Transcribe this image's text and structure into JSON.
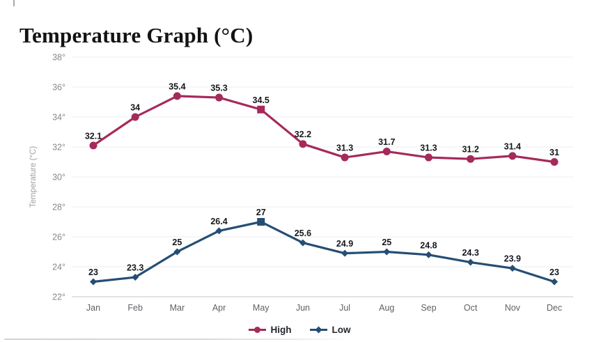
{
  "page": {
    "title": "Temperature Graph (°C)"
  },
  "chart_data": {
    "type": "line",
    "title": "Temperature Graph (°C)",
    "xlabel": "",
    "ylabel": "Temperature (°C)",
    "categories": [
      "Jan",
      "Feb",
      "Mar",
      "Apr",
      "May",
      "Jun",
      "Jul",
      "Aug",
      "Sep",
      "Oct",
      "Nov",
      "Dec"
    ],
    "series": [
      {
        "name": "High",
        "color": "#a52a5b",
        "marker": "circle",
        "values": [
          32.1,
          34,
          35.4,
          35.3,
          34.5,
          32.2,
          31.3,
          31.7,
          31.3,
          31.2,
          31.4,
          31
        ],
        "highlight_index": 4
      },
      {
        "name": "Low",
        "color": "#254e74",
        "marker": "diamond",
        "values": [
          23,
          23.3,
          25,
          26.4,
          27,
          25.6,
          24.9,
          25,
          24.8,
          24.3,
          23.9,
          23
        ],
        "highlight_index": 4
      }
    ],
    "ylim": [
      22,
      38
    ],
    "ytick_step": 2,
    "ytick_suffix": "°",
    "grid": true,
    "legend_position": "bottom",
    "data_labels": true
  },
  "colors": {
    "grid": "#ededed",
    "axis_line": "#c3c7cb",
    "tick_label": "#85898c",
    "month_label": "#5d6166",
    "axis_title": "#9aa0a4",
    "data_label": "#16181d",
    "title": "#131313"
  }
}
